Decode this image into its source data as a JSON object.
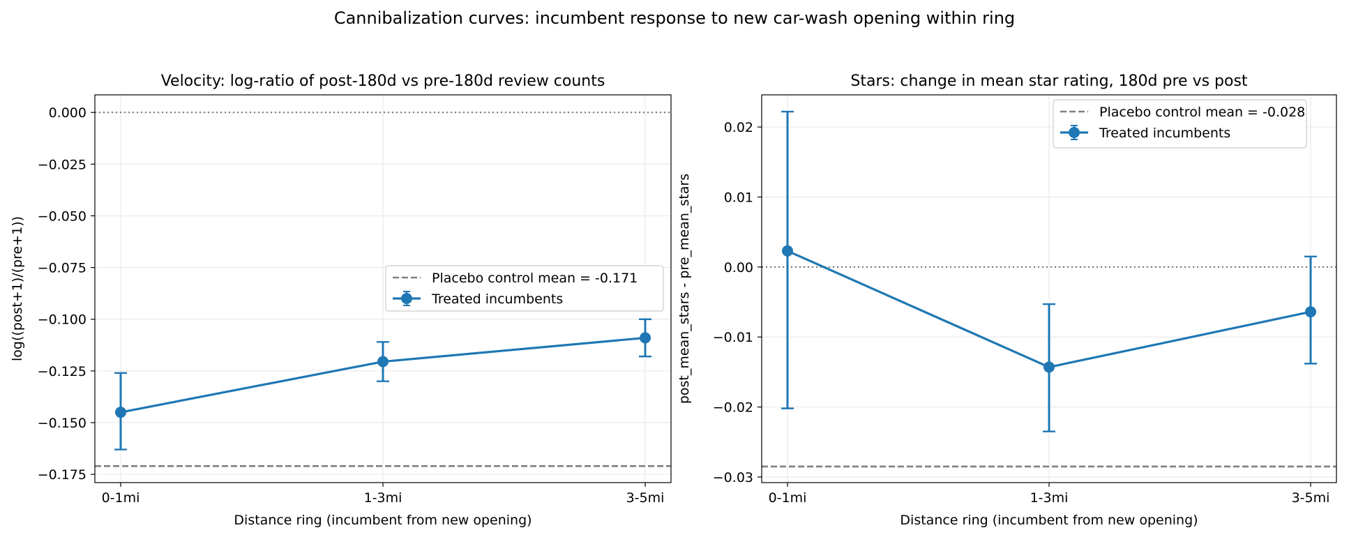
{
  "figure": {
    "suptitle": "Cannibalization curves: incumbent response to new car-wash opening within ring"
  },
  "chart_data": [
    {
      "type": "line",
      "title": "Velocity: log-ratio of post-180d vs pre-180d review counts",
      "xlabel": "Distance ring (incumbent from new opening)",
      "ylabel": "log((post+1)/(pre+1))",
      "categories": [
        "0-1mi",
        "1-3mi",
        "3-5mi"
      ],
      "ylim": [
        -0.179,
        0.0085
      ],
      "yticks": [
        0.0,
        -0.025,
        -0.05,
        -0.075,
        -0.1,
        -0.125,
        -0.15,
        -0.175
      ],
      "ytick_labels": [
        "0.000",
        "−0.025",
        "−0.050",
        "−0.075",
        "−0.100",
        "−0.125",
        "−0.150",
        "−0.175"
      ],
      "grid": true,
      "legend_position": "center-right",
      "series": [
        {
          "name": "Treated incumbents",
          "values": [
            -0.145,
            -0.1205,
            -0.109
          ],
          "err_low": [
            -0.163,
            -0.13,
            -0.118
          ],
          "err_high": [
            -0.126,
            -0.111,
            -0.1
          ],
          "color": "#1f77b4"
        }
      ],
      "reference_lines": [
        {
          "label": "Placebo control mean = -0.171",
          "y": -0.171,
          "style": "dashed",
          "color": "#7f7f7f",
          "in_legend": true
        },
        {
          "label": "",
          "y": 0.0,
          "style": "dotted",
          "color": "#7f7f7f",
          "in_legend": false
        }
      ]
    },
    {
      "type": "line",
      "title": "Stars: change in mean star rating, 180d pre vs post",
      "xlabel": "Distance ring (incumbent from new opening)",
      "ylabel": "post_mean_stars - pre_mean_stars",
      "categories": [
        "0-1mi",
        "1-3mi",
        "3-5mi"
      ],
      "ylim": [
        -0.0308,
        0.0246
      ],
      "yticks": [
        0.02,
        0.01,
        0.0,
        -0.01,
        -0.02,
        -0.03
      ],
      "ytick_labels": [
        "0.02",
        "0.01",
        "0.00",
        "−0.01",
        "−0.02",
        "−0.03"
      ],
      "grid": true,
      "legend_position": "top-right",
      "series": [
        {
          "name": "Treated incumbents",
          "values": [
            0.0023,
            -0.0143,
            -0.0064
          ],
          "err_low": [
            -0.0202,
            -0.0235,
            -0.0138
          ],
          "err_high": [
            0.0222,
            -0.0053,
            0.0015
          ],
          "color": "#1f77b4"
        }
      ],
      "reference_lines": [
        {
          "label": "Placebo control mean = -0.028",
          "y": -0.0285,
          "style": "dashed",
          "color": "#7f7f7f",
          "in_legend": true
        },
        {
          "label": "",
          "y": 0.0,
          "style": "dotted",
          "color": "#7f7f7f",
          "in_legend": false
        }
      ]
    }
  ]
}
